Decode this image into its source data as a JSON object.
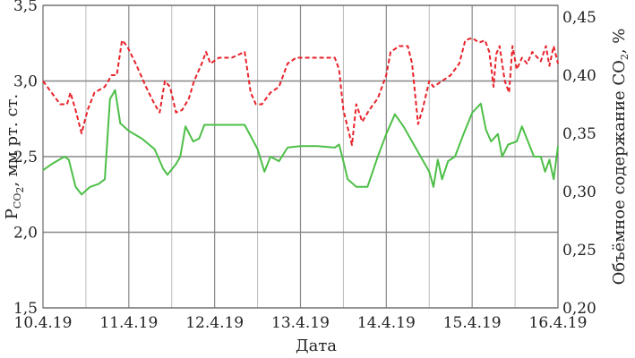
{
  "chart_data": {
    "type": "line",
    "xlabel": "Дата",
    "ylabel_left": {
      "prefix": "P",
      "sub": "CO",
      "sub2": "2",
      "suffix": ", мм рт. ст."
    },
    "ylabel_right": {
      "prefix": "Объёмное содержание CO",
      "sub": "2",
      "suffix": ", %"
    },
    "x_ticks": [
      "10.4.19",
      "11.4.19",
      "12.4.19",
      "13.4.19",
      "14.4.19",
      "15.4.19",
      "16.4.19"
    ],
    "left_ticks": [
      "1,5",
      "2,0",
      "2,5",
      "3,0",
      "3,5"
    ],
    "right_ticks": [
      "0,20",
      "0,25",
      "0,30",
      "0,35",
      "0,40",
      "0,45"
    ],
    "xlim": [
      0,
      6
    ],
    "ylim_left": [
      1.5,
      3.5
    ],
    "ylim_right": [
      0.2,
      0.46
    ],
    "grid": true,
    "colors": {
      "pressure": "#4dbf47",
      "concentration": "#e8222a",
      "grid_major": "#888888",
      "grid_minor": "#bbbbbb"
    },
    "series": [
      {
        "axis": "left",
        "style": "solid",
        "points": [
          [
            0,
            2.41
          ],
          [
            0.1,
            2.45
          ],
          [
            0.25,
            2.5
          ],
          [
            0.3,
            2.48
          ],
          [
            0.38,
            2.3
          ],
          [
            0.45,
            2.25
          ],
          [
            0.55,
            2.3
          ],
          [
            0.65,
            2.32
          ],
          [
            0.72,
            2.35
          ],
          [
            0.78,
            2.88
          ],
          [
            0.84,
            2.94
          ],
          [
            0.9,
            2.72
          ],
          [
            1,
            2.67
          ],
          [
            1.15,
            2.62
          ],
          [
            1.3,
            2.55
          ],
          [
            1.4,
            2.42
          ],
          [
            1.45,
            2.38
          ],
          [
            1.55,
            2.45
          ],
          [
            1.6,
            2.5
          ],
          [
            1.66,
            2.7
          ],
          [
            1.75,
            2.6
          ],
          [
            1.82,
            2.62
          ],
          [
            1.88,
            2.71
          ],
          [
            2.1,
            2.71
          ],
          [
            2.35,
            2.71
          ],
          [
            2.5,
            2.55
          ],
          [
            2.58,
            2.4
          ],
          [
            2.65,
            2.5
          ],
          [
            2.75,
            2.47
          ],
          [
            2.85,
            2.56
          ],
          [
            3,
            2.57
          ],
          [
            3.2,
            2.57
          ],
          [
            3.4,
            2.56
          ],
          [
            3.45,
            2.58
          ],
          [
            3.5,
            2.47
          ],
          [
            3.55,
            2.35
          ],
          [
            3.65,
            2.3
          ],
          [
            3.78,
            2.3
          ],
          [
            3.9,
            2.5
          ],
          [
            4,
            2.65
          ],
          [
            4.1,
            2.78
          ],
          [
            4.2,
            2.7
          ],
          [
            4.3,
            2.6
          ],
          [
            4.4,
            2.5
          ],
          [
            4.5,
            2.4
          ],
          [
            4.55,
            2.3
          ],
          [
            4.6,
            2.48
          ],
          [
            4.65,
            2.35
          ],
          [
            4.72,
            2.47
          ],
          [
            4.8,
            2.5
          ],
          [
            4.9,
            2.65
          ],
          [
            5,
            2.79
          ],
          [
            5.1,
            2.85
          ],
          [
            5.16,
            2.68
          ],
          [
            5.22,
            2.6
          ],
          [
            5.3,
            2.65
          ],
          [
            5.35,
            2.5
          ],
          [
            5.42,
            2.58
          ],
          [
            5.52,
            2.6
          ],
          [
            5.58,
            2.7
          ],
          [
            5.65,
            2.6
          ],
          [
            5.72,
            2.5
          ],
          [
            5.8,
            2.5
          ],
          [
            5.85,
            2.4
          ],
          [
            5.9,
            2.48
          ],
          [
            5.95,
            2.35
          ],
          [
            6,
            2.57
          ]
        ]
      },
      {
        "axis": "right",
        "style": "dashed",
        "points": [
          [
            0,
            0.395
          ],
          [
            0.1,
            0.385
          ],
          [
            0.2,
            0.375
          ],
          [
            0.28,
            0.375
          ],
          [
            0.32,
            0.385
          ],
          [
            0.38,
            0.37
          ],
          [
            0.45,
            0.35
          ],
          [
            0.52,
            0.37
          ],
          [
            0.6,
            0.385
          ],
          [
            0.72,
            0.39
          ],
          [
            0.8,
            0.4
          ],
          [
            0.86,
            0.4
          ],
          [
            0.92,
            0.43
          ],
          [
            0.98,
            0.425
          ],
          [
            1.08,
            0.41
          ],
          [
            1.2,
            0.39
          ],
          [
            1.3,
            0.375
          ],
          [
            1.36,
            0.368
          ],
          [
            1.42,
            0.395
          ],
          [
            1.48,
            0.39
          ],
          [
            1.55,
            0.368
          ],
          [
            1.62,
            0.37
          ],
          [
            1.7,
            0.38
          ],
          [
            1.76,
            0.395
          ],
          [
            1.85,
            0.41
          ],
          [
            1.9,
            0.42
          ],
          [
            1.95,
            0.41
          ],
          [
            2.05,
            0.415
          ],
          [
            2.2,
            0.415
          ],
          [
            2.35,
            0.42
          ],
          [
            2.42,
            0.385
          ],
          [
            2.48,
            0.375
          ],
          [
            2.55,
            0.375
          ],
          [
            2.65,
            0.385
          ],
          [
            2.75,
            0.39
          ],
          [
            2.85,
            0.41
          ],
          [
            2.95,
            0.415
          ],
          [
            3.1,
            0.415
          ],
          [
            3.25,
            0.415
          ],
          [
            3.4,
            0.415
          ],
          [
            3.45,
            0.405
          ],
          [
            3.5,
            0.37
          ],
          [
            3.55,
            0.355
          ],
          [
            3.6,
            0.34
          ],
          [
            3.65,
            0.375
          ],
          [
            3.72,
            0.36
          ],
          [
            3.8,
            0.37
          ],
          [
            3.9,
            0.38
          ],
          [
            4,
            0.4
          ],
          [
            4.05,
            0.42
          ],
          [
            4.15,
            0.425
          ],
          [
            4.25,
            0.425
          ],
          [
            4.3,
            0.41
          ],
          [
            4.37,
            0.358
          ],
          [
            4.42,
            0.37
          ],
          [
            4.5,
            0.395
          ],
          [
            4.55,
            0.39
          ],
          [
            4.65,
            0.395
          ],
          [
            4.75,
            0.4
          ],
          [
            4.85,
            0.41
          ],
          [
            4.92,
            0.43
          ],
          [
            5,
            0.432
          ],
          [
            5.08,
            0.428
          ],
          [
            5.15,
            0.43
          ],
          [
            5.2,
            0.42
          ],
          [
            5.25,
            0.39
          ],
          [
            5.28,
            0.418
          ],
          [
            5.32,
            0.425
          ],
          [
            5.38,
            0.395
          ],
          [
            5.43,
            0.385
          ],
          [
            5.47,
            0.425
          ],
          [
            5.52,
            0.405
          ],
          [
            5.58,
            0.415
          ],
          [
            5.64,
            0.41
          ],
          [
            5.7,
            0.42
          ],
          [
            5.8,
            0.412
          ],
          [
            5.86,
            0.425
          ],
          [
            5.9,
            0.408
          ],
          [
            5.95,
            0.425
          ],
          [
            6,
            0.41
          ]
        ]
      }
    ]
  }
}
